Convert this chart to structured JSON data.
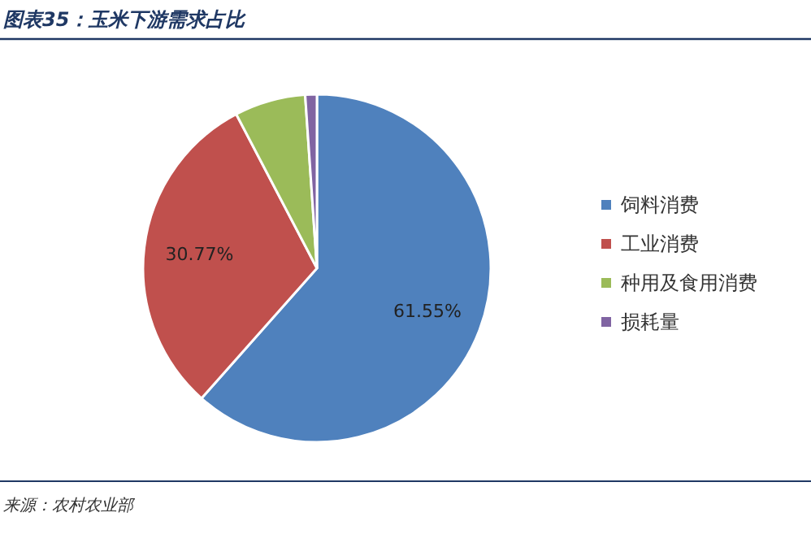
{
  "chart_data": {
    "type": "pie",
    "title": "图表35：玉米下游需求占比",
    "categories": [
      "饲料消费",
      "工业消费",
      "种用及食用消费",
      "损耗量"
    ],
    "values": [
      61.55,
      30.77,
      6.6,
      1.08
    ],
    "colors": [
      "#4f81bd",
      "#c0504d",
      "#9bbb59",
      "#8064a2"
    ],
    "value_labels": [
      "61.55%",
      "30.77%",
      null,
      null
    ],
    "legend": "right",
    "annotations": [
      "来源：农村农业部"
    ]
  }
}
